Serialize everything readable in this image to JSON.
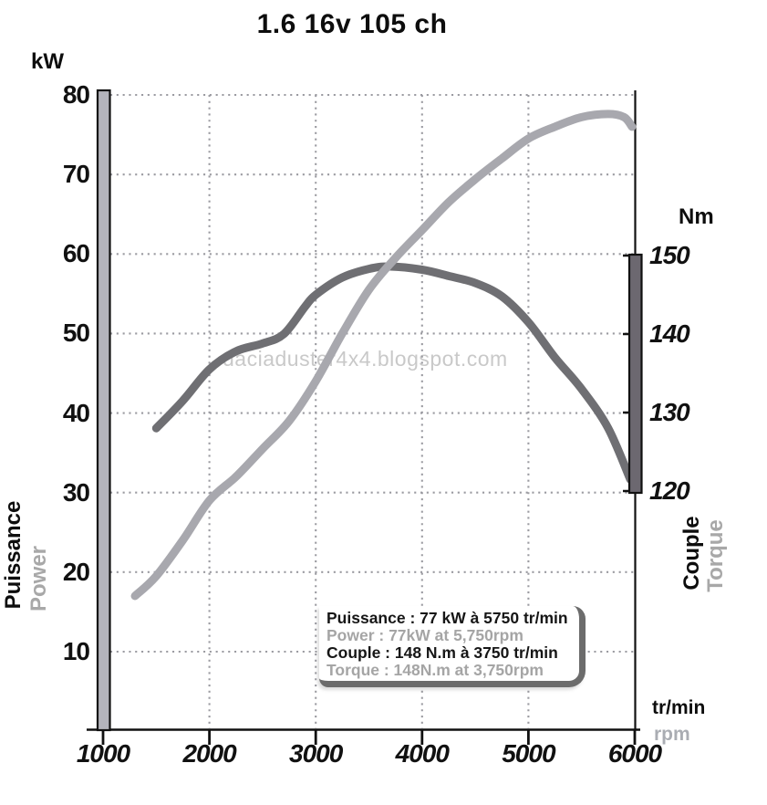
{
  "title": "1.6 16v 105 ch",
  "watermark": "daciaduster4x4.blogspot.com",
  "axes": {
    "left_unit": "kW",
    "right_unit": "Nm",
    "x_unit_primary": "tr/min",
    "x_unit_secondary": "rpm",
    "left_title_primary": "Puissance",
    "left_title_secondary": "Power",
    "right_title_primary": "Couple",
    "right_title_secondary": "Torque"
  },
  "legend": {
    "lines": [
      {
        "text": "Puissance : 77 kW à 5750 tr/min",
        "color": "#161616"
      },
      {
        "text": "Power : 77kW at 5,750rpm",
        "color": "#a5a5a5"
      },
      {
        "text": "Couple : 148 N.m à 3750 tr/min",
        "color": "#161616"
      },
      {
        "text": "Torque : 148N.m at 3,750rpm",
        "color": "#a5a5a5"
      }
    ]
  },
  "colors": {
    "power_curve": "#a8a8ae",
    "torque_curve": "#6f6f73",
    "left_axis_bar": "#b4b4bc",
    "right_axis_bar": "#6c6870",
    "grid_dots": "#9b9ba1",
    "axis_line": "#111111",
    "watermark": "#c9c9c9",
    "secondary_text": "#a8a8a8"
  },
  "chart_data": {
    "type": "line",
    "title": "1.6 16v 105 ch",
    "x_ticks": [
      1000,
      2000,
      3000,
      4000,
      5000,
      6000
    ],
    "x_range": [
      1000,
      6000
    ],
    "x_unit": "tr/min (rpm)",
    "grid": "dotted",
    "legend_position": "bottom-center",
    "left_axis": {
      "unit": "kW",
      "title": "Puissance / Power",
      "ticks": [
        80,
        70,
        60,
        50,
        40,
        30,
        20,
        10
      ]
    },
    "right_axis": {
      "unit": "Nm",
      "title": "Couple / Torque",
      "ticks": [
        150,
        140,
        130,
        120
      ]
    },
    "annotations": {
      "power_peak_fr": "77 kW à 5750 tr/min",
      "power_peak_en": "77kW at 5,750rpm",
      "torque_peak_fr": "148 N.m à 3750 tr/min",
      "torque_peak_en": "148N.m at 3,750rpm"
    },
    "series": [
      {
        "name": "Puissance / Power",
        "unit": "kW",
        "axis": "left",
        "color": "#a8a8ae",
        "points": [
          [
            1300,
            17
          ],
          [
            1500,
            19.5
          ],
          [
            1750,
            24
          ],
          [
            2000,
            29
          ],
          [
            2250,
            32
          ],
          [
            2500,
            35.5
          ],
          [
            2750,
            39
          ],
          [
            3000,
            44
          ],
          [
            3250,
            50
          ],
          [
            3500,
            55.5
          ],
          [
            3750,
            59.5
          ],
          [
            4000,
            63
          ],
          [
            4250,
            66.5
          ],
          [
            4500,
            69.4
          ],
          [
            4750,
            72
          ],
          [
            5000,
            74.5
          ],
          [
            5250,
            76
          ],
          [
            5500,
            77.2
          ],
          [
            5750,
            77.6
          ],
          [
            5900,
            77.2
          ],
          [
            6000,
            76
          ]
        ]
      },
      {
        "name": "Couple / Torque",
        "unit": "N.m",
        "axis": "right",
        "color": "#6f6f73",
        "points": [
          [
            1500,
            128
          ],
          [
            1750,
            131.5
          ],
          [
            2000,
            135.5
          ],
          [
            2250,
            137.8
          ],
          [
            2500,
            138.8
          ],
          [
            2700,
            140
          ],
          [
            2900,
            143.5
          ],
          [
            3000,
            145
          ],
          [
            3250,
            147.2
          ],
          [
            3500,
            148.3
          ],
          [
            3700,
            148.6
          ],
          [
            4000,
            148.2
          ],
          [
            4250,
            147.4
          ],
          [
            4500,
            146.5
          ],
          [
            4750,
            144.8
          ],
          [
            5000,
            141.5
          ],
          [
            5250,
            137
          ],
          [
            5500,
            133
          ],
          [
            5750,
            128
          ],
          [
            6000,
            121.5
          ]
        ]
      }
    ]
  }
}
